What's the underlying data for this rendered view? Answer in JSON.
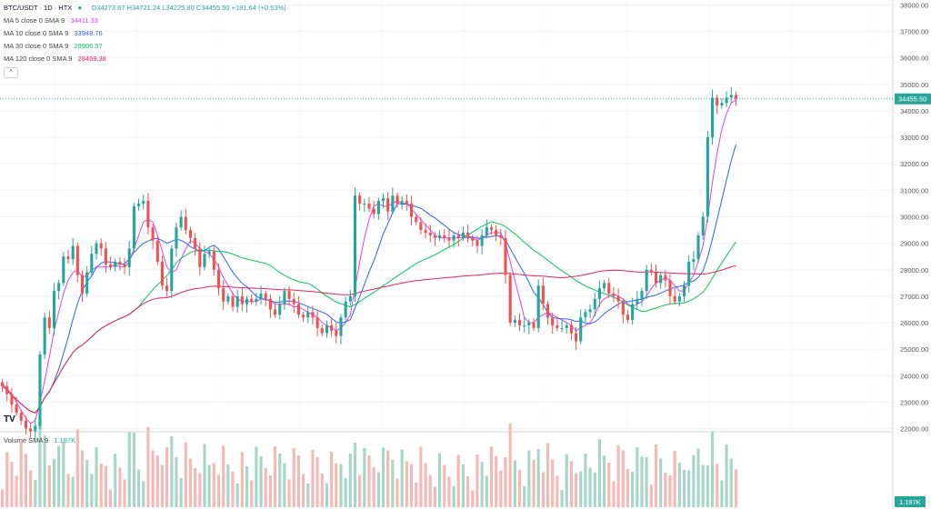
{
  "header": {
    "symbol": "BTC/USDT · 1D · HTX",
    "live_icon": "live-dot-icon",
    "ohlc_text": "O34273.87 H34721.24 L34225.80 C34455.50 +181.64 (+0.53%)"
  },
  "indicators": [
    {
      "label": "MA 5 close 0 SMA 9",
      "value": "34411.33",
      "color": "#e040fb"
    },
    {
      "label": "MA 10 close 0 SMA 9",
      "value": "33948.76",
      "color": "#2962ff"
    },
    {
      "label": "MA 30 close 0 SMA 9",
      "value": "29906.57",
      "color": "#00c853"
    },
    {
      "label": "MA 120 close 0 SMA 9",
      "value": "28469.38",
      "color": "#e91e63"
    }
  ],
  "collapse_icon": "chevron-up-icon",
  "volume_legend": {
    "label": "Volume SMA 9",
    "value": "1.197K"
  },
  "logo_text": "TV",
  "colors": {
    "up": "#26a69a",
    "down": "#ef5350",
    "vol_up": "#a5d6c7",
    "vol_down": "#f7b7b4",
    "last_price": "#26a69a"
  },
  "chart_data": {
    "type": "candlestick",
    "price_axis": {
      "ticks": [
        "22000.00",
        "23000.00",
        "24000.00",
        "25000.00",
        "26000.00",
        "27000.00",
        "28000.00",
        "29000.00",
        "30000.00",
        "31000.00",
        "32000.00",
        "33000.00",
        "34000.00",
        "35000.00",
        "36000.00",
        "37000.00",
        "38000.00"
      ],
      "range": [
        21950,
        38050
      ],
      "position": "right",
      "grid": true
    },
    "last_price": {
      "value": 34455.5,
      "label": "34455.50"
    },
    "volume_axis": {
      "last_label": "1.197K"
    },
    "close": [
      23600,
      23300,
      22900,
      22600,
      22300,
      22000,
      21900,
      22100,
      24800,
      26200,
      25800,
      27200,
      27500,
      28500,
      28400,
      28900,
      27800,
      27100,
      27900,
      28600,
      29000,
      28800,
      28200,
      28100,
      28300,
      28200,
      28100,
      28800,
      30400,
      30500,
      30600,
      29600,
      29100,
      28300,
      27400,
      27200,
      28800,
      29600,
      30000,
      29500,
      29200,
      28800,
      28100,
      28600,
      28700,
      28000,
      27300,
      26800,
      27000,
      26600,
      27000,
      26700,
      26900,
      26800,
      26900,
      27100,
      26900,
      26500,
      26300,
      26700,
      27200,
      26900,
      26700,
      26300,
      26200,
      26400,
      26200,
      25800,
      25600,
      25900,
      25700,
      25500,
      26200,
      26800,
      27000,
      30800,
      30500,
      30500,
      30300,
      30100,
      30600,
      30700,
      30200,
      30800,
      30500,
      30600,
      30500,
      30000,
      29800,
      29500,
      29400,
      29300,
      29200,
      29300,
      29200,
      29100,
      29300,
      29200,
      29400,
      29200,
      29100,
      28900,
      29300,
      29600,
      29500,
      29300,
      29200,
      27800,
      26000,
      26100,
      25900,
      25900,
      26000,
      25800,
      27400,
      26700,
      26200,
      25900,
      25800,
      25800,
      25900,
      25600,
      25300,
      26200,
      26400,
      26500,
      26900,
      27300,
      27500,
      27100,
      27000,
      26800,
      26300,
      26100,
      26700,
      26900,
      27200,
      28000,
      27900,
      27500,
      27800,
      27600,
      27000,
      26800,
      27000,
      27400,
      28300,
      28400,
      29300,
      30000,
      33000,
      34500,
      34200,
      34300,
      34500,
      34600,
      34455.5
    ],
    "ma5": [
      23700,
      23500,
      23300,
      23000,
      22700,
      22400,
      22200,
      22300,
      23000,
      23800,
      24700,
      25700,
      26400,
      27100,
      27600,
      27900,
      28000,
      27700,
      27800,
      28000,
      28100,
      28100,
      28100,
      28100,
      28200,
      28100,
      28100,
      28300,
      28800,
      29300,
      29800,
      29900,
      29800,
      29300,
      28700,
      28100,
      27900,
      28000,
      28400,
      28800,
      29100,
      29000,
      28800,
      28700,
      28600,
      28400,
      28100,
      27700,
      27400,
      27100,
      26900,
      26800,
      26800,
      26800,
      26800,
      26900,
      26900,
      26800,
      26700,
      26700,
      26700,
      26700,
      26600,
      26600,
      26500,
      26400,
      26300,
      26200,
      26000,
      25900,
      25800,
      25700,
      25800,
      26000,
      26300,
      27300,
      28300,
      29200,
      29900,
      30400,
      30500,
      30400,
      30400,
      30500,
      30600,
      30500,
      30500,
      30300,
      30100,
      29900,
      29700,
      29500,
      29300,
      29200,
      29200,
      29200,
      29200,
      29200,
      29200,
      29200,
      29200,
      29100,
      29200,
      29300,
      29400,
      29400,
      29400,
      29000,
      28300,
      27600,
      26900,
      26200,
      26000,
      26000,
      26200,
      26300,
      26400,
      26300,
      26200,
      26100,
      26000,
      25900,
      25700,
      25800,
      25900,
      26000,
      26300,
      26700,
      26900,
      27000,
      27100,
      27000,
      26900,
      26700,
      26600,
      26700,
      26800,
      27000,
      27300,
      27500,
      27600,
      27700,
      27600,
      27400,
      27200,
      27200,
      27500,
      27800,
      28300,
      28900,
      30000,
      31300,
      32400,
      33300,
      33900,
      34300,
      34411
    ]
  }
}
